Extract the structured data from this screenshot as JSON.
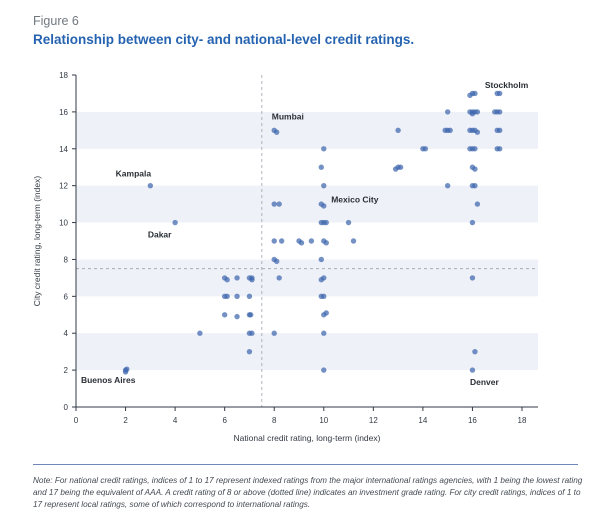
{
  "figure_label": "Figure 6",
  "title": "Relationship between city- and national-level credit ratings.",
  "note": "Note: For national credit ratings, indices of 1 to 17 represent indexed ratings from the major international ratings agencies, with 1 being the lowest rating and 17 being the equivalent of AAA. A credit rating of 8 or above (dotted line) indicates an investment grade rating. For city credit ratings, indices of 1 to 17 represent local ratings, some of which correspond to international ratings.",
  "colors": {
    "points": "#3f67ad",
    "band": "#eef1f8",
    "threshold": "#9aa3ad"
  },
  "chart_data": {
    "type": "scatter",
    "xlabel": "National credit rating, long-term (index)",
    "ylabel": "City credit rating, long-term (index)",
    "xlim": [
      0,
      18
    ],
    "ylim": [
      0,
      18
    ],
    "xticks": [
      0,
      2,
      4,
      6,
      8,
      10,
      12,
      14,
      16,
      18
    ],
    "yticks": [
      0,
      2,
      4,
      6,
      8,
      10,
      12,
      14,
      16,
      18
    ],
    "threshold": {
      "x": 7.5,
      "y": 7.5
    },
    "annotations": [
      {
        "text": "Stockholm",
        "x": 16.5,
        "y": 17.3
      },
      {
        "text": "Mumbai",
        "x": 7.9,
        "y": 15.6
      },
      {
        "text": "Kampala",
        "x": 1.6,
        "y": 12.5
      },
      {
        "text": "Mexico City",
        "x": 10.3,
        "y": 11.1
      },
      {
        "text": "Dakar",
        "x": 2.9,
        "y": 9.2
      },
      {
        "text": "Buenos Aires",
        "x": 0.2,
        "y": 1.3
      },
      {
        "text": "Denver",
        "x": 15.9,
        "y": 1.2
      }
    ],
    "points": [
      [
        2,
        2
      ],
      [
        2,
        1.9
      ],
      [
        2.05,
        2.05
      ],
      [
        3,
        12
      ],
      [
        4,
        10
      ],
      [
        5,
        4
      ],
      [
        6,
        7
      ],
      [
        6.1,
        6.9
      ],
      [
        6,
        6
      ],
      [
        6.1,
        6
      ],
      [
        6,
        5
      ],
      [
        6.5,
        7
      ],
      [
        6.5,
        6
      ],
      [
        6.5,
        4.9
      ],
      [
        7,
        7
      ],
      [
        7.1,
        7
      ],
      [
        7,
        6
      ],
      [
        7,
        5
      ],
      [
        7.05,
        5
      ],
      [
        7,
        4
      ],
      [
        7.1,
        4
      ],
      [
        7,
        3
      ],
      [
        7.1,
        6.9
      ],
      [
        8,
        15
      ],
      [
        8.1,
        14.9
      ],
      [
        8,
        11
      ],
      [
        8.2,
        11
      ],
      [
        8,
        9
      ],
      [
        8.3,
        9
      ],
      [
        8,
        8
      ],
      [
        8.1,
        7.9
      ],
      [
        8.2,
        7
      ],
      [
        8,
        4
      ],
      [
        9,
        9
      ],
      [
        9.1,
        8.9
      ],
      [
        9.5,
        9
      ],
      [
        10,
        14
      ],
      [
        9.9,
        13
      ],
      [
        10,
        12
      ],
      [
        9.9,
        11
      ],
      [
        10,
        10.9
      ],
      [
        10,
        10
      ],
      [
        9.9,
        10
      ],
      [
        10.1,
        10
      ],
      [
        10,
        9
      ],
      [
        10.1,
        8.9
      ],
      [
        9.9,
        8
      ],
      [
        10,
        7
      ],
      [
        9.9,
        6.9
      ],
      [
        10,
        6
      ],
      [
        9.9,
        6
      ],
      [
        10.1,
        5.1
      ],
      [
        10,
        5
      ],
      [
        10,
        4
      ],
      [
        10,
        2
      ],
      [
        11,
        10
      ],
      [
        11.2,
        9
      ],
      [
        13,
        15
      ],
      [
        13.1,
        13
      ],
      [
        12.9,
        12.9
      ],
      [
        13,
        13
      ],
      [
        14,
        14
      ],
      [
        14.1,
        14
      ],
      [
        15,
        16
      ],
      [
        15,
        15
      ],
      [
        14.9,
        15
      ],
      [
        15.1,
        15
      ],
      [
        15,
        12
      ],
      [
        16,
        17
      ],
      [
        16.1,
        17
      ],
      [
        15.9,
        16.9
      ],
      [
        16,
        16
      ],
      [
        15.9,
        16
      ],
      [
        16.1,
        16
      ],
      [
        16,
        15.9
      ],
      [
        16.2,
        16
      ],
      [
        16,
        15
      ],
      [
        15.9,
        15
      ],
      [
        16.1,
        15
      ],
      [
        16.2,
        14.9
      ],
      [
        16,
        14
      ],
      [
        16.1,
        14
      ],
      [
        15.9,
        14
      ],
      [
        16,
        13
      ],
      [
        16.1,
        12.9
      ],
      [
        16,
        12
      ],
      [
        16.1,
        12
      ],
      [
        16.2,
        11
      ],
      [
        16,
        10
      ],
      [
        16,
        7
      ],
      [
        16.1,
        3
      ],
      [
        16,
        2
      ],
      [
        17,
        17
      ],
      [
        17.1,
        17
      ],
      [
        17,
        16
      ],
      [
        17.1,
        16
      ],
      [
        16.9,
        16
      ],
      [
        17,
        15
      ],
      [
        17.1,
        15
      ],
      [
        17,
        14
      ],
      [
        17.1,
        14
      ]
    ]
  }
}
